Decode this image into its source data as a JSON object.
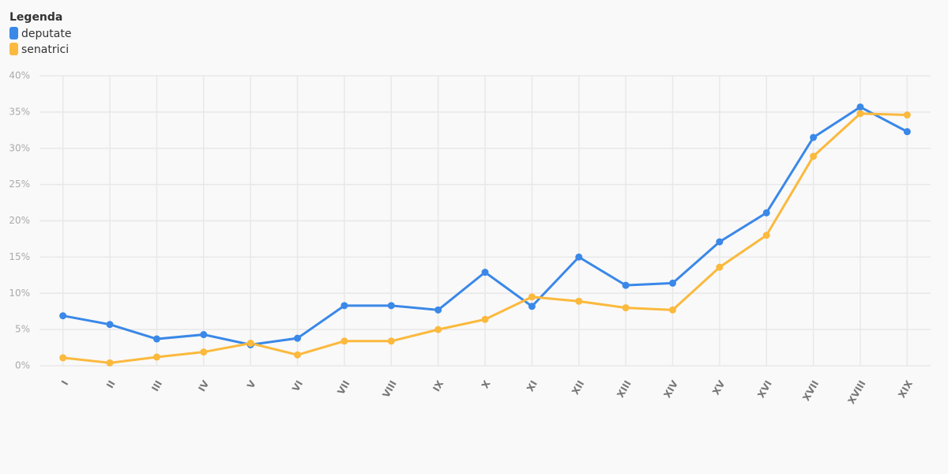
{
  "chart_data": {
    "type": "line",
    "legend_title": "Legenda",
    "categories": [
      "I",
      "II",
      "III",
      "IV",
      "V",
      "VI",
      "VII",
      "VIII",
      "IX",
      "X",
      "XI",
      "XII",
      "XIII",
      "XIV",
      "XV",
      "XVI",
      "XVII",
      "XVIII",
      "XIX"
    ],
    "series": [
      {
        "name": "deputate",
        "color": "#3a88e8",
        "values": [
          6.9,
          5.7,
          3.7,
          4.3,
          2.9,
          3.8,
          8.3,
          8.3,
          7.7,
          12.9,
          8.2,
          15.0,
          11.1,
          11.4,
          17.1,
          21.1,
          31.5,
          35.7,
          32.3
        ]
      },
      {
        "name": "senatrici",
        "color": "#fbb93d",
        "values": [
          1.1,
          0.4,
          1.2,
          1.9,
          3.1,
          1.5,
          3.4,
          3.4,
          5.0,
          6.4,
          9.5,
          8.9,
          8.0,
          7.7,
          13.6,
          18.0,
          28.9,
          34.8,
          34.6
        ]
      }
    ],
    "ylim": [
      0,
      40
    ],
    "yticks": [
      {
        "value": 0,
        "label": "0%"
      },
      {
        "value": 5,
        "label": "5%"
      },
      {
        "value": 10,
        "label": "10%"
      },
      {
        "value": 15,
        "label": "15%"
      },
      {
        "value": 20,
        "label": "20%"
      },
      {
        "value": 25,
        "label": "25%"
      },
      {
        "value": 30,
        "label": "30%"
      },
      {
        "value": 35,
        "label": "35%"
      },
      {
        "value": 40,
        "label": "40%"
      }
    ],
    "grid": true
  }
}
